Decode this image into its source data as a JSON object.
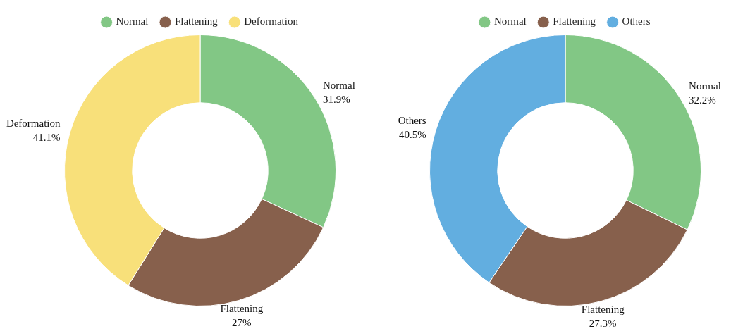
{
  "chart_data": [
    {
      "type": "donut",
      "categories": [
        "Normal",
        "Flattening",
        "Deformation"
      ],
      "values": [
        31.9,
        27,
        41.1
      ],
      "colors": [
        "#82c785",
        "#87604c",
        "#f8e07a"
      ],
      "value_labels": [
        "31.9%",
        "27%",
        "41.1%"
      ],
      "legend": "top"
    },
    {
      "type": "donut",
      "categories": [
        "Normal",
        "Flattening",
        "Others"
      ],
      "values": [
        32.2,
        27.3,
        40.5
      ],
      "colors": [
        "#82c785",
        "#87604c",
        "#62aee0"
      ],
      "value_labels": [
        "32.2%",
        "27.3%",
        "40.5%"
      ],
      "legend": "top"
    }
  ]
}
